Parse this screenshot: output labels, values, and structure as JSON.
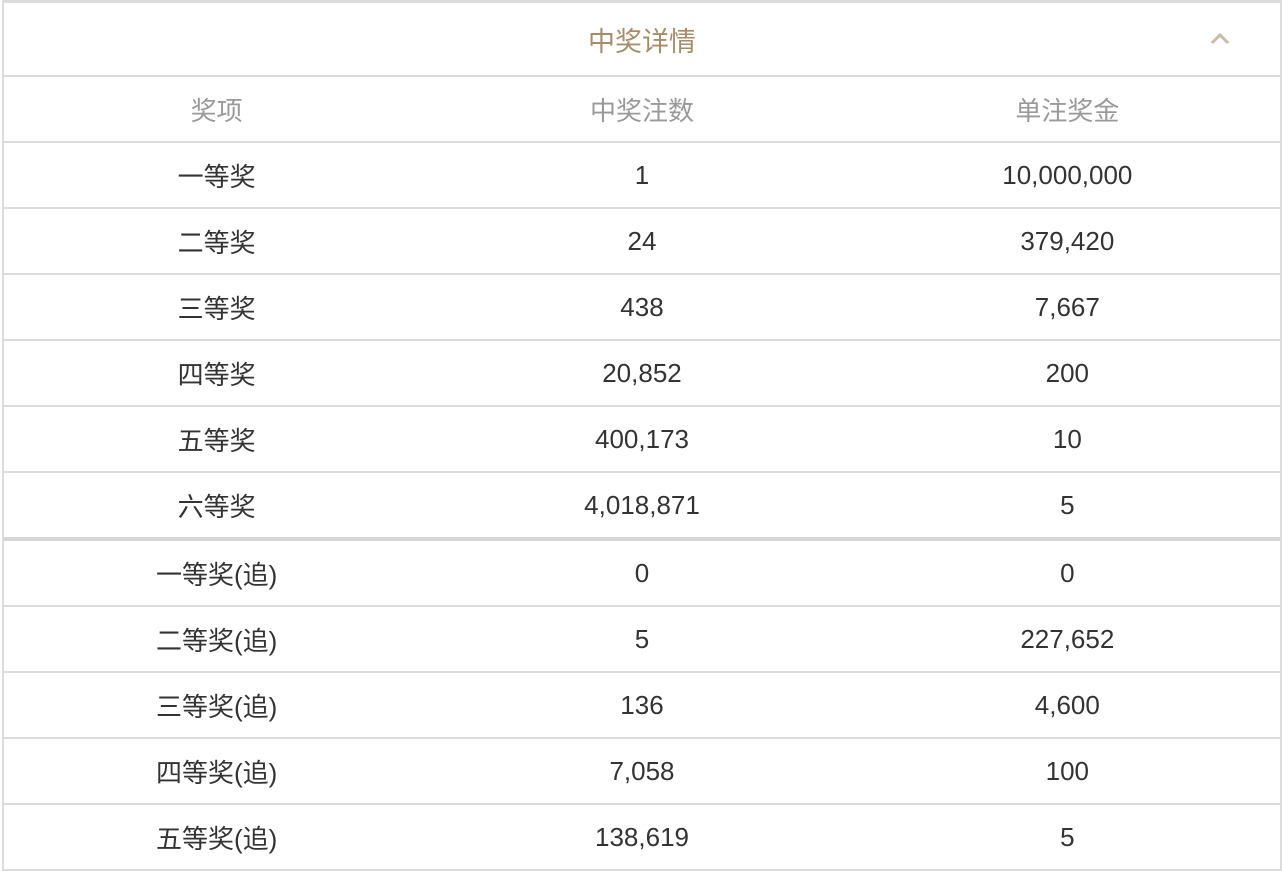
{
  "title": "中奖详情",
  "icons": {
    "collapse": "chevron-up-icon"
  },
  "colors": {
    "title": "#a88c68",
    "header_text": "#999999",
    "text": "#333333",
    "border": "#dcdcdc"
  },
  "columns": [
    "奖项",
    "中奖注数",
    "单注奖金"
  ],
  "rows": [
    [
      "一等奖",
      "1",
      "10,000,000"
    ],
    [
      "二等奖",
      "24",
      "379,420"
    ],
    [
      "三等奖",
      "438",
      "7,667"
    ],
    [
      "四等奖",
      "20,852",
      "200"
    ],
    [
      "五等奖",
      "400,173",
      "10"
    ],
    [
      "六等奖",
      "4,018,871",
      "5"
    ],
    [
      "一等奖(追)",
      "0",
      "0"
    ],
    [
      "二等奖(追)",
      "5",
      "227,652"
    ],
    [
      "三等奖(追)",
      "136",
      "4,600"
    ],
    [
      "四等奖(追)",
      "7,058",
      "100"
    ],
    [
      "五等奖(追)",
      "138,619",
      "5"
    ]
  ]
}
